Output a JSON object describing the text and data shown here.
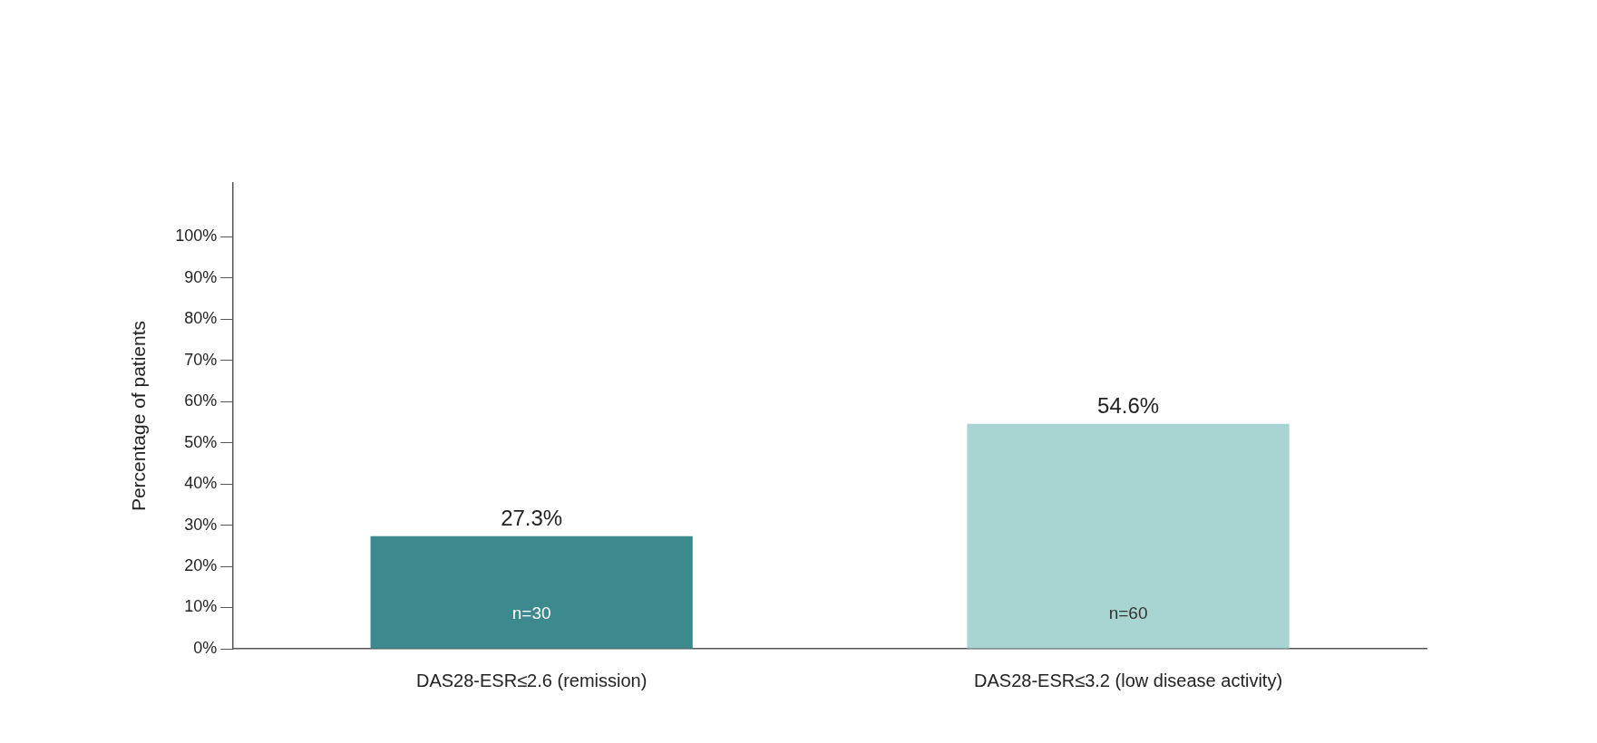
{
  "chart_data": {
    "type": "bar",
    "ylabel": "Percentage of patients",
    "categories": [
      "DAS28-ESR≤2.6 (remission)",
      "DAS28-ESR≤3.2 (low disease activity)"
    ],
    "values": [
      27.3,
      54.6
    ],
    "value_labels": [
      "27.3%",
      "54.6%"
    ],
    "colors": [
      "#3c8a8d",
      "#a8d5d1"
    ],
    "ylim": [
      0,
      113
    ],
    "yticks": [
      {
        "value": 0,
        "label": "0%"
      },
      {
        "value": 10,
        "label": "10%"
      },
      {
        "value": 20,
        "label": "20%"
      },
      {
        "value": 30,
        "label": "30%"
      },
      {
        "value": 40,
        "label": "40%"
      },
      {
        "value": 50,
        "label": "50%"
      },
      {
        "value": 60,
        "label": "60%"
      },
      {
        "value": 70,
        "label": "70%"
      },
      {
        "value": 80,
        "label": "80%"
      },
      {
        "value": 90,
        "label": "90%"
      },
      {
        "value": 100,
        "label": "100%"
      }
    ],
    "annotations": [
      "n=30",
      "n=60"
    ],
    "grid": false,
    "legend": false
  }
}
